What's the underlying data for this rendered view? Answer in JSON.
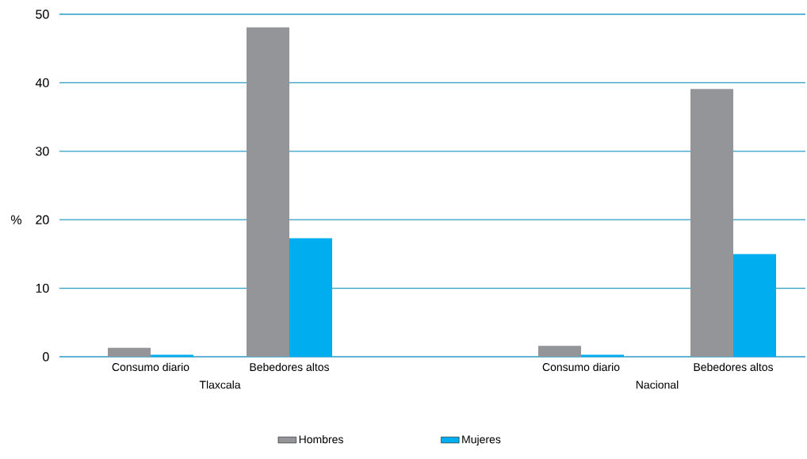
{
  "chart_data": [
    {
      "type": "bar",
      "categories": [
        "Consumo diario",
        "Bebedores altos"
      ],
      "xlabel": "Tlaxcala",
      "ylabel": "%",
      "ylim": [
        0,
        50
      ],
      "yticks": [
        0,
        10,
        20,
        30,
        40,
        50
      ],
      "grid": "y",
      "legend": "bottom",
      "series": [
        {
          "name": "Hombres",
          "color": "#939598",
          "values": [
            1.3,
            48.1
          ]
        },
        {
          "name": "Mujeres",
          "color": "#00aeef",
          "values": [
            0.3,
            17.3
          ]
        }
      ]
    },
    {
      "type": "bar",
      "categories": [
        "Consumo diario",
        "Bebedores altos"
      ],
      "xlabel": "Nacional",
      "ylim": [
        0,
        50
      ],
      "yticks": [
        0,
        10,
        20,
        30,
        40,
        50
      ],
      "grid": "y",
      "tick_labels": "x",
      "series": [
        {
          "color": "#939598",
          "values": [
            1.6,
            39.1
          ]
        },
        {
          "color": "#00aeef",
          "values": [
            0.3,
            15.0
          ]
        }
      ]
    }
  ]
}
